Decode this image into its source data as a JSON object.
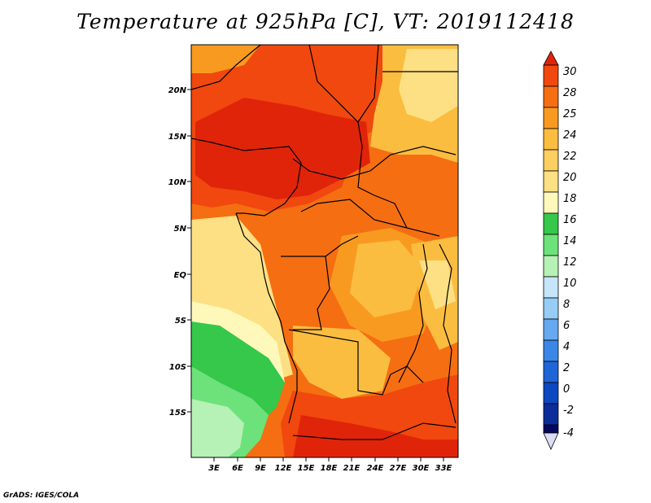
{
  "title": "Temperature at 925hPa [C], VT: 2019112418",
  "credit": "GrADS: IGES/COLA",
  "map": {
    "lat_labels": [
      "20N",
      "15N",
      "10N",
      "5N",
      "EQ",
      "5S",
      "10S",
      "15S"
    ],
    "lon_labels": [
      "3E",
      "6E",
      "9E",
      "12E",
      "15E",
      "18E",
      "21E",
      "24E",
      "27E",
      "30E",
      "33E"
    ]
  },
  "colorbar": {
    "labels": [
      "30",
      "28",
      "25",
      "24",
      "22",
      "20",
      "18",
      "16",
      "14",
      "12",
      "10",
      "8",
      "6",
      "4",
      "2",
      "0",
      "-2",
      "-4"
    ],
    "colors": {
      "c30": "#e0240a",
      "c28": "#f0480e",
      "c25": "#f56e12",
      "c24": "#f99a20",
      "c22": "#fbbd40",
      "c20": "#fde083",
      "c18": "#fff8bb",
      "c16": "#35c84a",
      "c14": "#6de27a",
      "c12": "#b6f1b5",
      "c10": "#c6e5f8",
      "c8": "#96cdf6",
      "c6": "#67a9f0",
      "c4": "#3b87e6",
      "c2": "#1f65d8",
      "c0": "#0e47c2",
      "cm2": "#0b2d99",
      "cm4": "#04085f"
    }
  }
}
